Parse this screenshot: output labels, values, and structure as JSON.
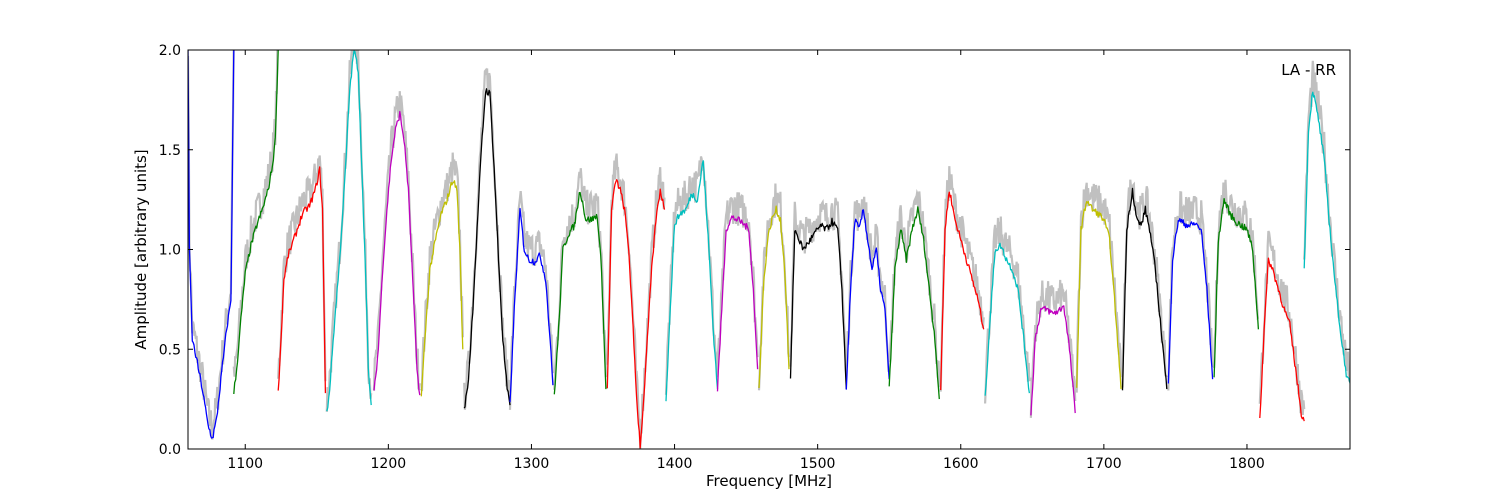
{
  "chart_data": {
    "type": "line",
    "title": "",
    "annotation": "LA - RR",
    "xlabel": "Frequency [MHz]",
    "ylabel": "Amplitude [arbitrary units]",
    "xlim": [
      1060,
      1872
    ],
    "ylim": [
      0,
      2.0
    ],
    "x_ticks": [
      1100,
      1200,
      1300,
      1400,
      1500,
      1600,
      1700,
      1800
    ],
    "y_ticks": [
      0.0,
      0.5,
      1.0,
      1.5,
      2.0
    ],
    "x_tick_labels": [
      "1100",
      "1200",
      "1300",
      "1400",
      "1500",
      "1600",
      "1700",
      "1800"
    ],
    "y_tick_labels": [
      "0.0",
      "0.5",
      "1.0",
      "1.5",
      "2.0"
    ],
    "grid": false,
    "background_color": "#c0c0c0",
    "series": [
      {
        "color": "#0000ff",
        "x": [
          1060,
          1061,
          1063,
          1066,
          1070,
          1074,
          1077,
          1080,
          1083,
          1087,
          1090,
          1092
        ],
        "y": [
          2.0,
          1.0,
          0.55,
          0.45,
          0.3,
          0.12,
          0.05,
          0.15,
          0.35,
          0.6,
          0.75,
          2.0
        ]
      },
      {
        "color": "#008000",
        "x": [
          1092,
          1094,
          1097,
          1100,
          1104,
          1108,
          1112,
          1116,
          1119,
          1121,
          1123
        ],
        "y": [
          0.28,
          0.4,
          0.65,
          0.88,
          1.02,
          1.12,
          1.2,
          1.3,
          1.42,
          1.55,
          2.0
        ]
      },
      {
        "color": "#ff0000",
        "x": [
          1123,
          1125,
          1127,
          1130,
          1135,
          1140,
          1145,
          1149,
          1152,
          1154,
          1156
        ],
        "y": [
          0.28,
          0.55,
          0.85,
          0.97,
          1.07,
          1.18,
          1.22,
          1.3,
          1.4,
          1.2,
          0.28
        ]
      },
      {
        "color": "#00bfbf",
        "x": [
          1157,
          1159,
          1162,
          1166,
          1170,
          1173,
          1176,
          1179,
          1181,
          1184,
          1186,
          1188
        ],
        "y": [
          0.18,
          0.3,
          0.6,
          0.95,
          1.4,
          1.8,
          2.0,
          1.9,
          1.5,
          0.9,
          0.4,
          0.22
        ]
      },
      {
        "color": "#bf00bf",
        "x": [
          1190,
          1193,
          1196,
          1199,
          1202,
          1205,
          1208,
          1211,
          1214,
          1217,
          1220,
          1222
        ],
        "y": [
          0.28,
          0.5,
          0.9,
          1.2,
          1.45,
          1.6,
          1.68,
          1.55,
          1.3,
          0.85,
          0.4,
          0.27
        ]
      },
      {
        "color": "#bfbf00",
        "x": [
          1223,
          1226,
          1229,
          1233,
          1237,
          1241,
          1245,
          1248,
          1250,
          1252
        ],
        "y": [
          0.26,
          0.6,
          0.9,
          1.05,
          1.18,
          1.25,
          1.35,
          1.3,
          1.0,
          0.5
        ]
      },
      {
        "color": "#000000",
        "x": [
          1253,
          1256,
          1259,
          1262,
          1265,
          1268,
          1271,
          1274,
          1277,
          1280,
          1283,
          1285
        ],
        "y": [
          0.19,
          0.35,
          0.7,
          1.1,
          1.5,
          1.8,
          1.78,
          1.4,
          0.95,
          0.55,
          0.3,
          0.22
        ]
      },
      {
        "color": "#0000ff",
        "x": [
          1285,
          1288,
          1292,
          1295,
          1298,
          1302,
          1306,
          1310,
          1313,
          1315
        ],
        "y": [
          0.22,
          0.7,
          1.2,
          1.0,
          0.95,
          0.94,
          0.97,
          0.85,
          0.55,
          0.32
        ]
      },
      {
        "color": "#008000",
        "x": [
          1316,
          1319,
          1322,
          1326,
          1330,
          1334,
          1338,
          1342,
          1346,
          1349,
          1352
        ],
        "y": [
          0.27,
          0.6,
          1.0,
          1.08,
          1.12,
          1.3,
          1.15,
          1.15,
          1.17,
          0.9,
          0.3
        ]
      },
      {
        "color": "#ff0000",
        "x": [
          1353,
          1356,
          1359,
          1362,
          1365,
          1368,
          1371,
          1374,
          1376,
          1378,
          1381,
          1384,
          1387,
          1390,
          1393
        ],
        "y": [
          0.3,
          1.2,
          1.35,
          1.3,
          1.2,
          1.0,
          0.6,
          0.2,
          0.02,
          0.2,
          0.55,
          0.9,
          1.15,
          1.3,
          1.2
        ]
      },
      {
        "color": "#00bfbf",
        "x": [
          1394,
          1397,
          1400,
          1404,
          1408,
          1412,
          1416,
          1420,
          1424,
          1427,
          1430
        ],
        "y": [
          0.25,
          0.7,
          1.13,
          1.18,
          1.2,
          1.28,
          1.25,
          1.45,
          1.0,
          0.6,
          0.3
        ]
      },
      {
        "color": "#bf00bf",
        "x": [
          1430,
          1433,
          1436,
          1440,
          1444,
          1448,
          1452,
          1455,
          1458
        ],
        "y": [
          0.3,
          0.7,
          1.1,
          1.16,
          1.15,
          1.13,
          1.1,
          0.8,
          0.4
        ]
      },
      {
        "color": "#bfbf00",
        "x": [
          1459,
          1462,
          1465,
          1468,
          1471,
          1474,
          1477,
          1480
        ],
        "y": [
          0.3,
          0.8,
          1.05,
          1.15,
          1.2,
          1.15,
          0.9,
          0.4
        ]
      },
      {
        "color": "#000000",
        "x": [
          1481,
          1484,
          1487,
          1490,
          1494,
          1498,
          1502,
          1506,
          1510,
          1514,
          1517,
          1520
        ],
        "y": [
          0.35,
          1.1,
          1.05,
          1.0,
          1.04,
          1.08,
          1.12,
          1.1,
          1.14,
          1.1,
          0.8,
          0.3
        ]
      },
      {
        "color": "#0000ff",
        "x": [
          1520,
          1523,
          1526,
          1529,
          1532,
          1535,
          1538,
          1541,
          1544,
          1547,
          1550
        ],
        "y": [
          0.3,
          0.8,
          1.15,
          1.1,
          1.2,
          1.05,
          0.9,
          1.0,
          0.8,
          0.7,
          0.35
        ]
      },
      {
        "color": "#008000",
        "x": [
          1550,
          1554,
          1558,
          1562,
          1566,
          1570,
          1574,
          1578,
          1582,
          1585
        ],
        "y": [
          0.3,
          0.9,
          1.1,
          0.95,
          1.1,
          1.2,
          1.05,
          0.8,
          0.55,
          0.25
        ]
      },
      {
        "color": "#ff0000",
        "x": [
          1586,
          1589,
          1592,
          1596,
          1600,
          1604,
          1608,
          1612,
          1616
        ],
        "y": [
          0.3,
          1.1,
          1.3,
          1.15,
          1.05,
          0.95,
          0.85,
          0.75,
          0.6
        ]
      },
      {
        "color": "#00bfbf",
        "x": [
          1617,
          1620,
          1624,
          1628,
          1632,
          1636,
          1640,
          1644,
          1648
        ],
        "y": [
          0.25,
          0.6,
          1.0,
          1.02,
          0.95,
          0.9,
          0.8,
          0.55,
          0.28
        ]
      },
      {
        "color": "#bf00bf",
        "x": [
          1649,
          1652,
          1656,
          1660,
          1664,
          1668,
          1672,
          1676,
          1680
        ],
        "y": [
          0.16,
          0.55,
          0.7,
          0.7,
          0.68,
          0.69,
          0.72,
          0.5,
          0.18
        ]
      },
      {
        "color": "#bfbf00",
        "x": [
          1681,
          1684,
          1688,
          1692,
          1696,
          1700,
          1704,
          1708,
          1712
        ],
        "y": [
          0.3,
          1.1,
          1.25,
          1.2,
          1.18,
          1.15,
          1.05,
          0.7,
          0.3
        ]
      },
      {
        "color": "#000000",
        "x": [
          1713,
          1716,
          1720,
          1723,
          1726,
          1729,
          1732,
          1736,
          1740,
          1744
        ],
        "y": [
          0.3,
          1.1,
          1.3,
          1.15,
          1.12,
          1.2,
          1.1,
          0.9,
          0.6,
          0.3
        ]
      },
      {
        "color": "#0000ff",
        "x": [
          1745,
          1748,
          1752,
          1756,
          1760,
          1764,
          1768,
          1772,
          1776
        ],
        "y": [
          0.32,
          0.95,
          1.15,
          1.13,
          1.12,
          1.13,
          1.1,
          0.8,
          0.35
        ]
      },
      {
        "color": "#008000",
        "x": [
          1777,
          1780,
          1784,
          1788,
          1792,
          1796,
          1800,
          1804,
          1808
        ],
        "y": [
          0.35,
          1.05,
          1.25,
          1.18,
          1.14,
          1.12,
          1.1,
          1.0,
          0.6
        ]
      },
      {
        "color": "#ff0000",
        "x": [
          1809,
          1812,
          1815,
          1818,
          1822,
          1826,
          1830,
          1834,
          1838,
          1840
        ],
        "y": [
          0.15,
          0.6,
          0.95,
          0.9,
          0.8,
          0.7,
          0.62,
          0.4,
          0.18,
          0.14
        ]
      },
      {
        "color": "#00bfbf",
        "x": [
          1840,
          1843,
          1846,
          1850,
          1854,
          1858,
          1862,
          1866,
          1870,
          1872
        ],
        "y": [
          0.9,
          1.6,
          1.8,
          1.65,
          1.45,
          1.1,
          0.8,
          0.55,
          0.35,
          0.33
        ]
      }
    ]
  }
}
